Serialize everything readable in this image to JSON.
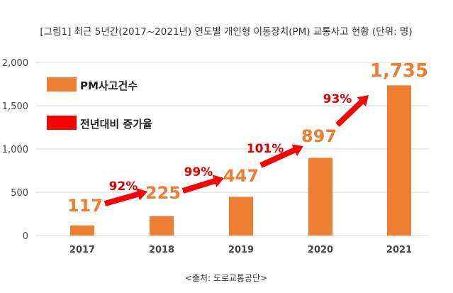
{
  "chart_data": {
    "type": "bar",
    "title": "[그림1] 최근 5년간(2017~2021년) 연도별 개인형 이동장치(PM) 교통사고 현황 (단위: 명)",
    "categories": [
      "2017",
      "2018",
      "2019",
      "2020",
      "2021"
    ],
    "series": [
      {
        "name": "PM사고건수",
        "values": [
          117,
          225,
          447,
          897,
          1735
        ],
        "labels": [
          "117",
          "225",
          "447",
          "897",
          "1,735"
        ],
        "color": "#ED7D31"
      }
    ],
    "growth": {
      "name": "전년대비 증가율",
      "color": "#FF0000",
      "labels": [
        "92%",
        "99%",
        "101%",
        "93%"
      ]
    },
    "ylim": [
      0,
      2000
    ],
    "yticks": [
      0,
      500,
      1000,
      1500,
      2000
    ],
    "ytick_labels": [
      "0",
      "500",
      "1,000",
      "1,500",
      "2,000"
    ],
    "grid": true,
    "legend": "top-left",
    "source": "<출처: 도로교통공단>"
  }
}
